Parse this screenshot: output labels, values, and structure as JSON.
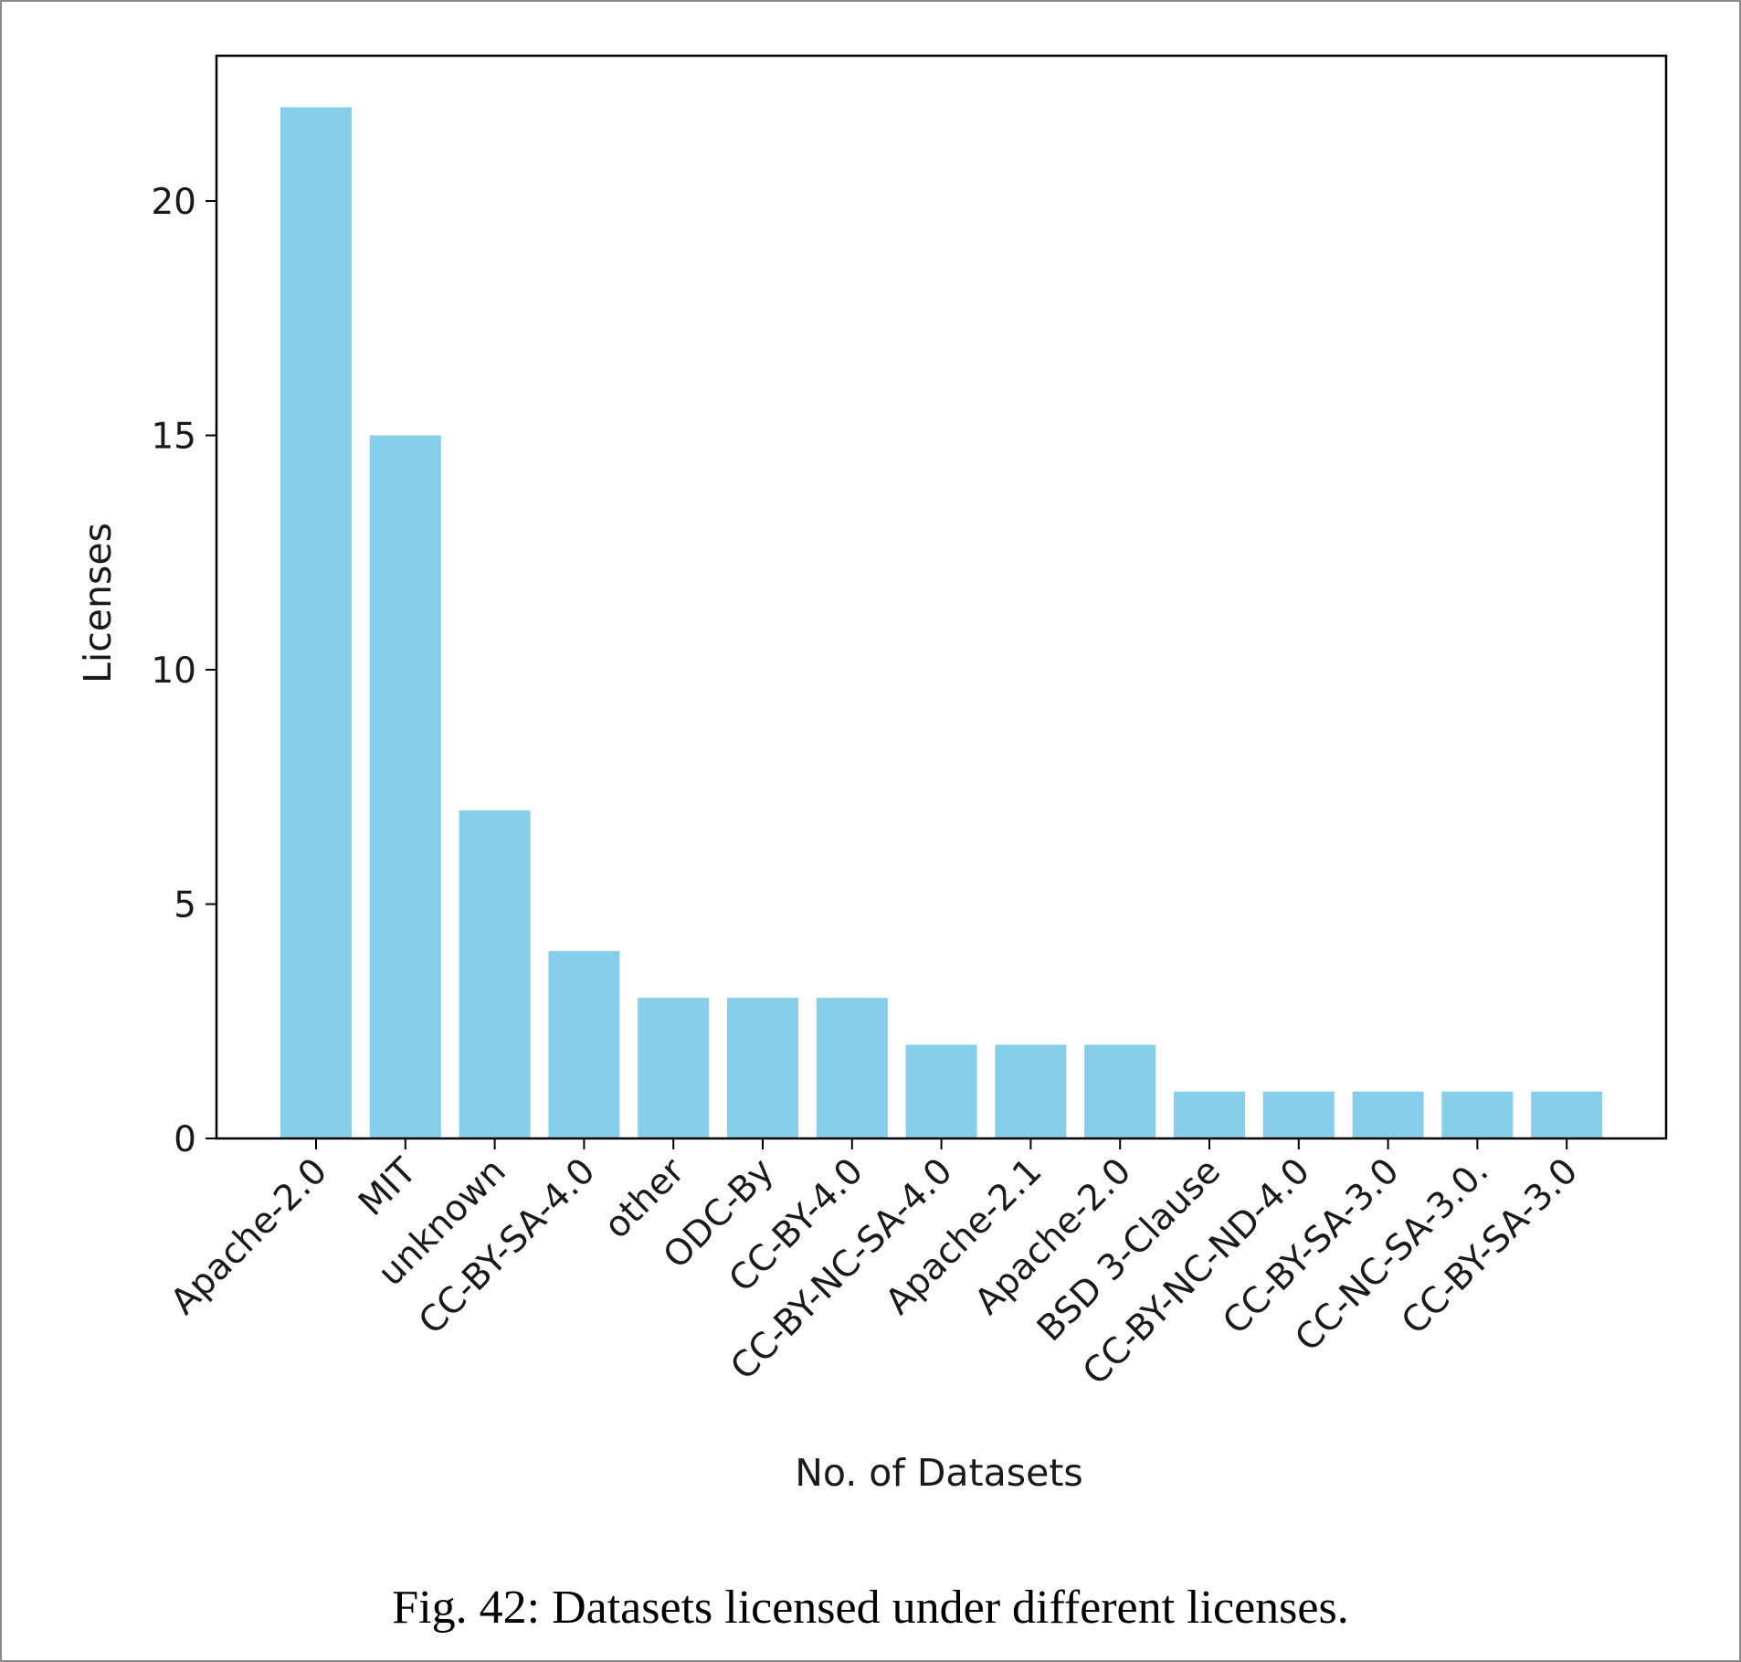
{
  "caption": "Fig. 42: Datasets licensed under different licenses.",
  "chart_data": {
    "type": "bar",
    "categories": [
      "Apache-2.0",
      "MIT",
      "unknown",
      "CC-BY-SA-4.0",
      "other",
      "ODC-By",
      "CC-BY-4.0",
      "CC-BY-NC-SA-4.0",
      "Apache-2.1",
      "Apache-2.0",
      "BSD 3-Clause",
      "CC-BY-NC-ND-4.0",
      "CC-BY-SA-3.0",
      "CC-NC-SA-3.0.",
      "CC-BY-SA-3.0"
    ],
    "values": [
      22,
      15,
      7,
      4,
      3,
      3,
      3,
      2,
      2,
      2,
      1,
      1,
      1,
      1,
      1
    ],
    "xlabel": "No. of Datasets",
    "ylabel": "Licenses",
    "ylim": [
      0,
      23.1
    ],
    "yticks": [
      0,
      5,
      10,
      15,
      20
    ],
    "bar_color": "#87ceeb",
    "grid": false,
    "legend": "none"
  }
}
